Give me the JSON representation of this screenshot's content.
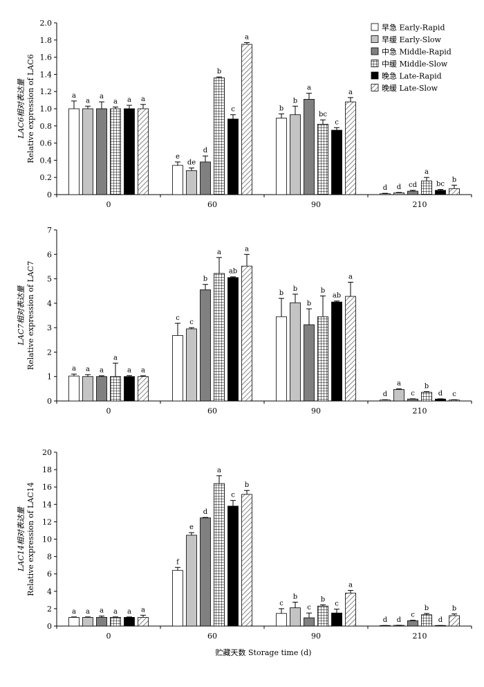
{
  "figure": {
    "xlabel": "贮藏天数 Storage time (d)"
  },
  "colors": {
    "axis": "#000000",
    "early_slow": "#c4c4c4",
    "middle_rapid": "#808080",
    "late_rapid": "#000000"
  },
  "legend": [
    {
      "label": "早急 Early-Rapid",
      "fill": "white"
    },
    {
      "label": "早缓 Early-Slow",
      "fill": "lightgray"
    },
    {
      "label": "中急 Middle-Rapid",
      "fill": "gray"
    },
    {
      "label": "中缓 Middle-Slow",
      "fill": "grid"
    },
    {
      "label": "晚急 Late-Rapid",
      "fill": "black"
    },
    {
      "label": "晚缓 Late-Slow",
      "fill": "hatch"
    }
  ],
  "chart_data": [
    {
      "type": "bar",
      "ylabel_cn": "LAC6相对表达量",
      "ylabel_en": "Relative expression of LAC6",
      "categories": [
        "0",
        "60",
        "90",
        "210"
      ],
      "ylim": [
        0,
        2.0
      ],
      "yticks": [
        "0",
        "0.2",
        "0.4",
        "0.6",
        "0.8",
        "1.0",
        "1.2",
        "1.4",
        "1.6",
        "1.8",
        "2.0"
      ],
      "series": [
        {
          "name": "早急 Early-Rapid",
          "values": [
            1.0,
            0.34,
            0.89,
            0.01
          ],
          "errors": [
            0.09,
            0.04,
            0.05,
            0.005
          ],
          "letters": [
            "a",
            "e",
            "b",
            "d"
          ]
        },
        {
          "name": "早缓 Early-Slow",
          "values": [
            1.0,
            0.28,
            0.93,
            0.02
          ],
          "errors": [
            0.03,
            0.03,
            0.1,
            0.005
          ],
          "letters": [
            "a",
            "de",
            "b",
            "d"
          ]
        },
        {
          "name": "中急 Middle-Rapid",
          "values": [
            1.0,
            0.38,
            1.11,
            0.04
          ],
          "errors": [
            0.08,
            0.07,
            0.07,
            0.01
          ],
          "letters": [
            "a",
            "d",
            "a",
            "cd"
          ]
        },
        {
          "name": "中缓 Middle-Slow",
          "values": [
            1.0,
            1.36,
            0.82,
            0.16
          ],
          "errors": [
            0.02,
            0.01,
            0.05,
            0.04
          ],
          "letters": [
            "a",
            "b",
            "bc",
            "a"
          ]
        },
        {
          "name": "晚急 Late-Rapid",
          "values": [
            1.0,
            0.88,
            0.75,
            0.05
          ],
          "errors": [
            0.04,
            0.05,
            0.03,
            0.01
          ],
          "letters": [
            "a",
            "c",
            "c",
            "bc"
          ]
        },
        {
          "name": "晚缓 Late-Slow",
          "values": [
            1.0,
            1.75,
            1.08,
            0.07
          ],
          "errors": [
            0.05,
            0.02,
            0.05,
            0.04
          ],
          "letters": [
            "a",
            "a",
            "a",
            "b"
          ]
        }
      ]
    },
    {
      "type": "bar",
      "ylabel_cn": "LAC7相对表达量",
      "ylabel_en": "Relative expression of LAC7",
      "categories": [
        "0",
        "60",
        "90",
        "210"
      ],
      "ylim": [
        0,
        7
      ],
      "yticks": [
        "0",
        "1",
        "2",
        "3",
        "4",
        "5",
        "6",
        "7"
      ],
      "series": [
        {
          "name": "早急 Early-Rapid",
          "values": [
            1.02,
            2.68,
            3.45,
            0.04
          ],
          "errors": [
            0.08,
            0.5,
            0.75,
            0.01
          ],
          "letters": [
            "a",
            "c",
            "b",
            "d"
          ]
        },
        {
          "name": "早缓 Early-Slow",
          "values": [
            1.0,
            2.95,
            4.02,
            0.47
          ],
          "errors": [
            0.08,
            0.05,
            0.35,
            0.03
          ],
          "letters": [
            "a",
            "c",
            "b",
            "a"
          ]
        },
        {
          "name": "中急 Middle-Rapid",
          "values": [
            1.0,
            4.55,
            3.12,
            0.08
          ],
          "errors": [
            0.03,
            0.22,
            0.65,
            0.01
          ],
          "letters": [
            "a",
            "b",
            "b",
            "c"
          ]
        },
        {
          "name": "中缓 Middle-Slow",
          "values": [
            1.0,
            5.22,
            3.45,
            0.36
          ],
          "errors": [
            0.55,
            0.65,
            0.85,
            0.02
          ],
          "letters": [
            "a",
            "a",
            "b",
            "b"
          ]
        },
        {
          "name": "晚急 Late-Rapid",
          "values": [
            1.0,
            5.05,
            4.05,
            0.08
          ],
          "errors": [
            0.04,
            0.03,
            0.04,
            0.01
          ],
          "letters": [
            "a",
            "ab",
            "ab",
            "d"
          ]
        },
        {
          "name": "晚缓 Late-Slow",
          "values": [
            1.0,
            5.52,
            4.28,
            0.04
          ],
          "errors": [
            0.03,
            0.48,
            0.58,
            0.01
          ],
          "letters": [
            "a",
            "a",
            "a",
            "c"
          ]
        }
      ]
    },
    {
      "type": "bar",
      "ylabel_cn": "LAC14相对表达量",
      "ylabel_en": "Relative expression of LAC14",
      "categories": [
        "0",
        "60",
        "90",
        "210"
      ],
      "ylim": [
        0,
        20
      ],
      "yticks": [
        "0",
        "2",
        "4",
        "6",
        "8",
        "10",
        "12",
        "14",
        "16",
        "18",
        "20"
      ],
      "series": [
        {
          "name": "早急 Early-Rapid",
          "values": [
            1.0,
            6.4,
            1.45,
            0.05
          ],
          "errors": [
            0.05,
            0.35,
            0.55,
            0.01
          ],
          "letters": [
            "a",
            "f",
            "c",
            "d"
          ]
        },
        {
          "name": "早缓 Early-Slow",
          "values": [
            1.0,
            10.45,
            2.1,
            0.08
          ],
          "errors": [
            0.05,
            0.3,
            0.65,
            0.01
          ],
          "letters": [
            "a",
            "e",
            "b",
            "d"
          ]
        },
        {
          "name": "中急 Middle-Rapid",
          "values": [
            1.0,
            12.45,
            0.95,
            0.62
          ],
          "errors": [
            0.15,
            0.05,
            0.55,
            0.05
          ],
          "letters": [
            "a",
            "d",
            "c",
            "c"
          ]
        },
        {
          "name": "中缓 Middle-Slow",
          "values": [
            1.0,
            16.4,
            2.3,
            1.3
          ],
          "errors": [
            0.05,
            0.9,
            0.15,
            0.15
          ],
          "letters": [
            "a",
            "a",
            "b",
            "b"
          ]
        },
        {
          "name": "晚急 Late-Rapid",
          "values": [
            1.0,
            13.8,
            1.5,
            0.05
          ],
          "errors": [
            0.05,
            0.65,
            0.45,
            0.01
          ],
          "letters": [
            "a",
            "c",
            "c",
            "d"
          ]
        },
        {
          "name": "晚缓 Late-Slow",
          "values": [
            1.0,
            15.15,
            3.8,
            1.2
          ],
          "errors": [
            0.25,
            0.45,
            0.3,
            0.2
          ],
          "letters": [
            "a",
            "b",
            "a",
            "b"
          ]
        }
      ]
    }
  ]
}
